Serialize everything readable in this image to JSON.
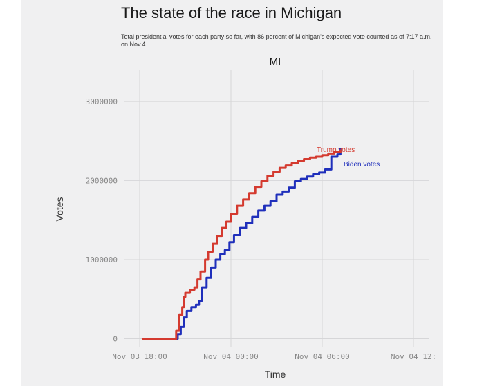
{
  "header": {
    "title": "The state of the race in Michigan",
    "subtitle": "Total presidential votes for each party so far, with 86 percent of Michigan's expected vote counted as of 7:17 a.m. on Nov.4"
  },
  "chart_data": {
    "type": "line",
    "facet_label": "MI",
    "xlabel": "Time",
    "ylabel": "Votes",
    "x_unit": "hours since Nov 03 18:00",
    "xlim": [
      -1,
      19
    ],
    "ylim": [
      -100000,
      3400000
    ],
    "x_ticks": [
      {
        "value": 0,
        "label": "Nov 03 18:00"
      },
      {
        "value": 6,
        "label": "Nov 04 00:00"
      },
      {
        "value": 12,
        "label": "Nov 04 06:00"
      },
      {
        "value": 18,
        "label": "Nov 04 12:"
      }
    ],
    "y_ticks": [
      {
        "value": 0,
        "label": "0"
      },
      {
        "value": 1000000,
        "label": "1000000"
      },
      {
        "value": 2000000,
        "label": "2000000"
      },
      {
        "value": 3000000,
        "label": "3000000"
      }
    ],
    "grid": true,
    "series": [
      {
        "name": "Trump votes",
        "color": "#d43a2f",
        "x": [
          0.2,
          2.1,
          2.4,
          2.6,
          2.8,
          2.9,
          3.0,
          3.3,
          3.6,
          3.8,
          4.0,
          4.3,
          4.5,
          4.8,
          5.1,
          5.4,
          5.7,
          6.0,
          6.4,
          6.8,
          7.2,
          7.6,
          8.0,
          8.4,
          8.8,
          9.2,
          9.6,
          10.0,
          10.4,
          10.8,
          11.2,
          11.6,
          12.0,
          12.4,
          12.8,
          13.2
        ],
        "y": [
          0,
          0,
          100000,
          300000,
          400000,
          530000,
          580000,
          620000,
          650000,
          750000,
          850000,
          1000000,
          1100000,
          1200000,
          1300000,
          1400000,
          1480000,
          1580000,
          1680000,
          1760000,
          1840000,
          1920000,
          1990000,
          2060000,
          2110000,
          2160000,
          2190000,
          2220000,
          2250000,
          2270000,
          2290000,
          2300000,
          2320000,
          2340000,
          2360000,
          2380000
        ]
      },
      {
        "name": "Biden votes",
        "color": "#1f2fbb",
        "x": [
          2.2,
          2.5,
          2.7,
          2.9,
          3.1,
          3.4,
          3.7,
          3.9,
          4.1,
          4.4,
          4.7,
          5.0,
          5.3,
          5.6,
          5.9,
          6.2,
          6.6,
          7.0,
          7.4,
          7.8,
          8.2,
          8.6,
          9.0,
          9.4,
          9.8,
          10.2,
          10.6,
          11.0,
          11.4,
          11.8,
          12.2,
          12.6,
          12.8,
          13.0,
          13.2
        ],
        "y": [
          0,
          60000,
          150000,
          270000,
          350000,
          400000,
          430000,
          480000,
          650000,
          770000,
          900000,
          1000000,
          1070000,
          1120000,
          1220000,
          1310000,
          1400000,
          1460000,
          1540000,
          1620000,
          1680000,
          1740000,
          1820000,
          1860000,
          1910000,
          1990000,
          2020000,
          2050000,
          2080000,
          2100000,
          2140000,
          2300000,
          2300000,
          2330000,
          2400000
        ]
      }
    ]
  }
}
